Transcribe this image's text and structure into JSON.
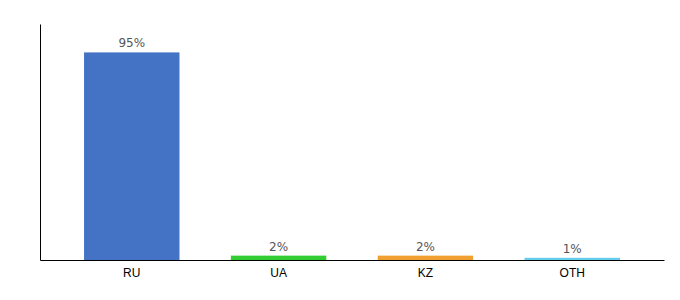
{
  "chart_data": {
    "type": "bar",
    "categories": [
      "RU",
      "UA",
      "KZ",
      "OTH"
    ],
    "values": [
      95,
      2,
      2,
      1
    ],
    "value_labels": [
      "95%",
      "2%",
      "2%",
      "1%"
    ],
    "colors": [
      "#4472c4",
      "#33cc33",
      "#f0a030",
      "#66ccee"
    ],
    "ylim": [
      0,
      108
    ],
    "data_labels": true,
    "tick_labels": "x"
  }
}
